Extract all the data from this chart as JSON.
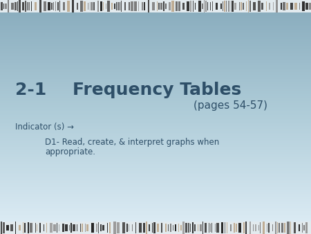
{
  "title_left": "2-1",
  "title_right": "Frequency Tables",
  "subtitle": "(pages 54-57)",
  "indicator_label": "Indicator (s) →",
  "bullet_line1": "D1- Read, create, & interpret graphs when",
  "bullet_line2": "appropriate.",
  "text_color": "#2e4f68",
  "title_fontsize": 18,
  "subtitle_fontsize": 11,
  "indicator_fontsize": 8.5,
  "bullet_fontsize": 8.5,
  "bg_color_top": "#8aadbe",
  "bg_color_mid": "#b0cdd9",
  "bg_color_bot": "#daeaf3",
  "barcode_bg": "#e8eef2"
}
